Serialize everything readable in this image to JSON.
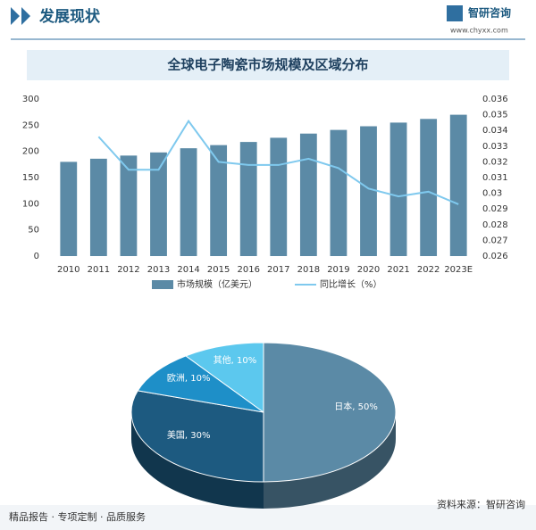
{
  "header": {
    "title": "发展现状",
    "brand": "智研咨询",
    "url": "www.chyxx.com"
  },
  "footer": {
    "slogan": "精品报告 · 专项定制 · 品质服务",
    "source": "资料来源：智研咨询"
  },
  "chart_title": "全球电子陶瓷市场规模及区域分布",
  "chart_data": [
    {
      "type": "bar_line",
      "categories": [
        "2010",
        "2011",
        "2012",
        "2013",
        "2014",
        "2015",
        "2016",
        "2017",
        "2018",
        "2019",
        "2020",
        "2021",
        "2022",
        "2023E"
      ],
      "series": [
        {
          "name": "市场规模（亿美元）",
          "color": "#5b8aa6",
          "values": [
            180,
            186,
            192,
            198,
            206,
            212,
            218,
            226,
            234,
            241,
            248,
            255,
            262,
            270
          ]
        },
        {
          "name": "同比增长（%）",
          "color": "#7fc9ee",
          "axis": "y2",
          "values": [
            null,
            0.0336,
            0.0315,
            0.0315,
            0.0346,
            0.032,
            0.0318,
            0.0318,
            0.0322,
            0.0316,
            0.0303,
            0.0298,
            0.0301,
            0.0293
          ]
        }
      ],
      "ylim": [
        0,
        300
      ],
      "yticks": [
        0,
        50,
        100,
        150,
        200,
        250,
        300
      ],
      "y2lim": [
        0.026,
        0.036
      ],
      "y2ticks": [
        0.026,
        0.027,
        0.028,
        0.029,
        0.03,
        0.031,
        0.032,
        0.033,
        0.034,
        0.035,
        0.036
      ],
      "legend": "bottom"
    },
    {
      "type": "pie3d",
      "categories": [
        "日本",
        "美国",
        "欧洲",
        "其他"
      ],
      "values": [
        50,
        30,
        10,
        10
      ],
      "value_labels": [
        "日本, 50%",
        "美国, 30%",
        "欧洲, 10%",
        "其他, 10%"
      ],
      "colors": [
        "#5b8aa6",
        "#1d5a80",
        "#1e8fc8",
        "#5cc8ee"
      ]
    }
  ]
}
